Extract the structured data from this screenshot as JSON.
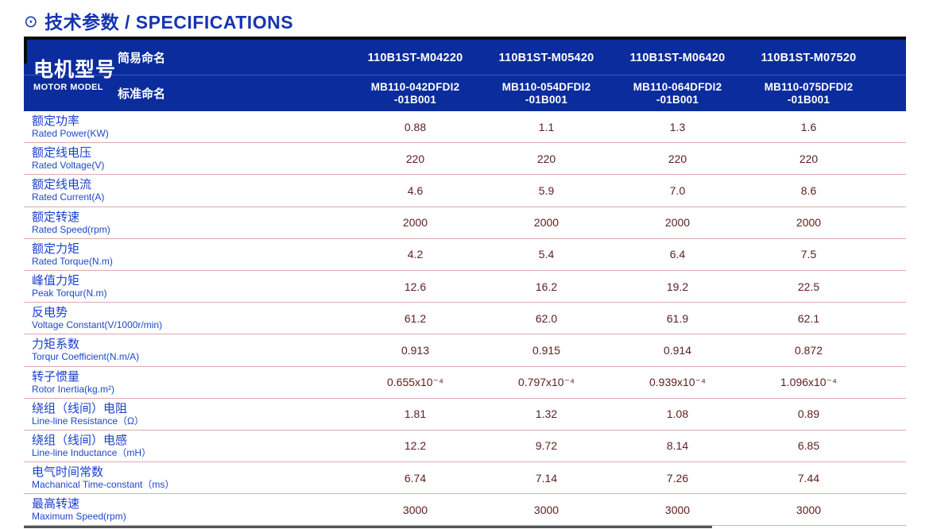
{
  "title": {
    "icon": "⊙",
    "text": "技术参数 / SPECIFICATIONS"
  },
  "table": {
    "motor_model": {
      "zh": "电机型号",
      "en": "MOTOR MODEL"
    },
    "simple_naming_label": "简易命名",
    "standard_naming_label": "标准命名",
    "simple_models": [
      "110B1ST-M04220",
      "110B1ST-M05420",
      "110B1ST-M06420",
      "110B1ST-M07520"
    ],
    "standard_models": [
      "MB110-042DFDI2\n-01B001",
      "MB110-054DFDI2\n-01B001",
      "MB110-064DFDI2\n-01B001",
      "MB110-075DFDI2\n-01B001"
    ],
    "rows": [
      {
        "zh": "额定功率",
        "en": "Rated Power(KW)",
        "values": [
          "0.88",
          "1.1",
          "1.3",
          "1.6"
        ]
      },
      {
        "zh": "额定线电压",
        "en": "Rated Voltage(V)",
        "values": [
          "220",
          "220",
          "220",
          "220"
        ]
      },
      {
        "zh": "额定线电流",
        "en": "Rated Current(A)",
        "values": [
          "4.6",
          "5.9",
          "7.0",
          "8.6"
        ]
      },
      {
        "zh": "额定转速",
        "en": "Rated Speed(rpm)",
        "values": [
          "2000",
          "2000",
          "2000",
          "2000"
        ]
      },
      {
        "zh": "额定力矩",
        "en": "Rated Torque(N.m)",
        "values": [
          "4.2",
          "5.4",
          "6.4",
          "7.5"
        ]
      },
      {
        "zh": "峰值力矩",
        "en": "Peak Torqur(N.m)",
        "values": [
          "12.6",
          "16.2",
          "19.2",
          "22.5"
        ]
      },
      {
        "zh": "反电势",
        "en": "Voltage Constant(V/1000r/min)",
        "values": [
          "61.2",
          "62.0",
          "61.9",
          "62.1"
        ]
      },
      {
        "zh": "力矩系数",
        "en": "Torqur Coefficient(N.m/A)",
        "values": [
          "0.913",
          "0.915",
          "0.914",
          "0.872"
        ]
      },
      {
        "zh": "转子惯量",
        "en": "Rotor Inertia(kg.m²)",
        "values": [
          "0.655x10⁻⁴",
          "0.797x10⁻⁴",
          "0.939x10⁻⁴",
          "1.096x10⁻⁴"
        ]
      },
      {
        "zh": "绕组（线间）电阻",
        "en": "Line-line Resistance（Ω）",
        "values": [
          "1.81",
          "1.32",
          "1.08",
          "0.89"
        ]
      },
      {
        "zh": "绕组（线间）电感",
        "en": "Line-line Inductance（mH）",
        "values": [
          "12.2",
          "9.72",
          "8.14",
          "6.85"
        ]
      },
      {
        "zh": "电气时间常数",
        "en": "Machanical Time-constant（ms）",
        "values": [
          "6.74",
          "7.14",
          "7.26",
          "7.44"
        ]
      },
      {
        "zh": "最高转速",
        "en": "Maximum Speed(rpm)",
        "values": [
          "3000",
          "3000",
          "3000",
          "3000"
        ]
      }
    ]
  },
  "colors": {
    "header_bg": "#0b2c9c",
    "title_blue": "#1634b0",
    "label_blue": "#1c41cc",
    "value_maroon": "#5e2020",
    "separator_pink": "#d9acac",
    "accent_black": "#0a0a0a"
  }
}
